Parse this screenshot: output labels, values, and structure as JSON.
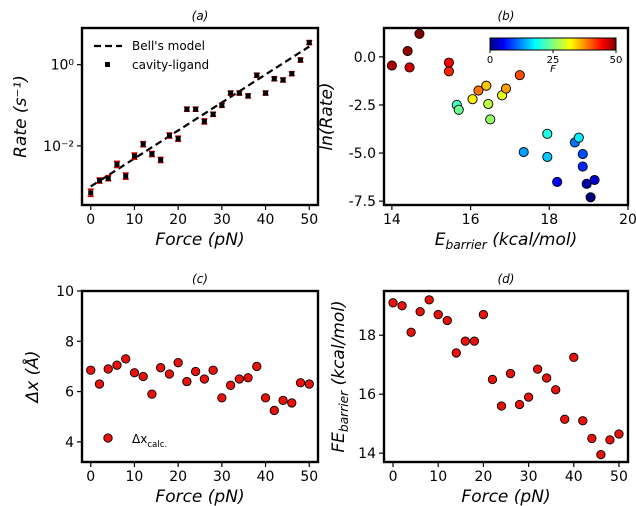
{
  "chart_data": [
    {
      "id": "a",
      "type": "scatter",
      "title": "(a)",
      "xlabel": "Force (pN)",
      "ylabel": "Rate (s⁻¹)",
      "yscale": "log",
      "xlim": [
        -2,
        52
      ],
      "ylim": [
        0.00035,
        8
      ],
      "xticks": [
        0,
        10,
        20,
        30,
        40,
        50
      ],
      "yticks": [
        {
          "v": 1,
          "label": "10⁰"
        },
        {
          "v": 0.01,
          "label": "10⁻²"
        }
      ],
      "legend": {
        "placement": "top-left",
        "entries": [
          "Bell's model",
          "cavity-ligand"
        ]
      },
      "series": [
        {
          "name": "cavity-ligand",
          "points": [
            {
              "x": 0,
              "y": 0.0007,
              "err": 0.35
            },
            {
              "x": 2,
              "y": 0.0014,
              "err": 0.25
            },
            {
              "x": 4,
              "y": 0.0016,
              "err": 0.25
            },
            {
              "x": 6,
              "y": 0.0035,
              "err": 0.3
            },
            {
              "x": 8,
              "y": 0.0018,
              "err": 0.3
            },
            {
              "x": 10,
              "y": 0.0056,
              "err": 0.3
            },
            {
              "x": 12,
              "y": 0.011,
              "err": 0.25
            },
            {
              "x": 14,
              "y": 0.0063,
              "err": 0.25
            },
            {
              "x": 16,
              "y": 0.0045,
              "err": 0.25
            },
            {
              "x": 18,
              "y": 0.018,
              "err": 0.25
            },
            {
              "x": 20,
              "y": 0.015,
              "err": 0.25
            },
            {
              "x": 22,
              "y": 0.08,
              "err": 0.2
            },
            {
              "x": 24,
              "y": 0.08,
              "err": 0.2
            },
            {
              "x": 26,
              "y": 0.04,
              "err": 0.25
            },
            {
              "x": 28,
              "y": 0.06,
              "err": 0.2
            },
            {
              "x": 30,
              "y": 0.1,
              "err": 0.2
            },
            {
              "x": 32,
              "y": 0.2,
              "err": 0.2
            },
            {
              "x": 34,
              "y": 0.2,
              "err": 0.2
            },
            {
              "x": 36,
              "y": 0.17,
              "err": 0.2
            },
            {
              "x": 38,
              "y": 0.55,
              "err": 0.2
            },
            {
              "x": 40,
              "y": 0.2,
              "err": 0.2
            },
            {
              "x": 42,
              "y": 0.45,
              "err": 0.2
            },
            {
              "x": 44,
              "y": 0.42,
              "err": 0.2
            },
            {
              "x": 46,
              "y": 0.6,
              "err": 0.2
            },
            {
              "x": 48,
              "y": 1.3,
              "err": 0.2
            },
            {
              "x": 50,
              "y": 3.5,
              "err": 0.2
            }
          ]
        },
        {
          "name": "Bell's model",
          "line": [
            {
              "x": 0,
              "y": 0.001
            },
            {
              "x": 50,
              "y": 2.8
            }
          ]
        }
      ]
    },
    {
      "id": "b",
      "type": "scatter",
      "title": "(b)",
      "xlabel": "E_barrier (kcal/mol)",
      "ylabel": "ln(Rate)",
      "xlim": [
        13.8,
        20
      ],
      "ylim": [
        -7.7,
        1.5
      ],
      "xticks": [
        14,
        16,
        18,
        20
      ],
      "yticks": [
        0.0,
        -2.5,
        -5.0,
        -7.5
      ],
      "colorbar": {
        "label": "F",
        "min": 0,
        "max": 50,
        "ticks": [
          0,
          25,
          50
        ],
        "colormap": "jet",
        "placement": "top-right"
      },
      "points": [
        {
          "x": 19.05,
          "y": -7.3,
          "f": 0
        },
        {
          "x": 18.95,
          "y": -6.6,
          "f": 2
        },
        {
          "x": 19.15,
          "y": -6.4,
          "f": 4
        },
        {
          "x": 18.2,
          "y": -6.5,
          "f": 6
        },
        {
          "x": 18.85,
          "y": -5.7,
          "f": 8
        },
        {
          "x": 18.85,
          "y": -5.05,
          "f": 10
        },
        {
          "x": 18.65,
          "y": -4.45,
          "f": 12
        },
        {
          "x": 17.35,
          "y": -4.95,
          "f": 14
        },
        {
          "x": 17.95,
          "y": -5.2,
          "f": 16
        },
        {
          "x": 18.75,
          "y": -4.2,
          "f": 18
        },
        {
          "x": 17.95,
          "y": -4.0,
          "f": 20
        },
        {
          "x": 15.65,
          "y": -2.5,
          "f": 22
        },
        {
          "x": 15.7,
          "y": -2.75,
          "f": 24
        },
        {
          "x": 16.5,
          "y": -3.25,
          "f": 26
        },
        {
          "x": 16.45,
          "y": -2.45,
          "f": 28
        },
        {
          "x": 16.8,
          "y": -2.0,
          "f": 30
        },
        {
          "x": 16.05,
          "y": -2.2,
          "f": 32
        },
        {
          "x": 16.4,
          "y": -1.5,
          "f": 34
        },
        {
          "x": 16.9,
          "y": -1.65,
          "f": 36
        },
        {
          "x": 16.2,
          "y": -1.75,
          "f": 38
        },
        {
          "x": 17.25,
          "y": -0.95,
          "f": 40
        },
        {
          "x": 15.45,
          "y": -0.75,
          "f": 42
        },
        {
          "x": 15.45,
          "y": -0.3,
          "f": 44
        },
        {
          "x": 14.45,
          "y": -0.55,
          "f": 46
        },
        {
          "x": 14.0,
          "y": -0.45,
          "f": 48
        },
        {
          "x": 14.4,
          "y": 0.3,
          "f": 49
        },
        {
          "x": 14.7,
          "y": 1.2,
          "f": 50
        }
      ]
    },
    {
      "id": "c",
      "type": "scatter",
      "title": "(c)",
      "xlabel": "Force (pN)",
      "ylabel": "Δx (Å)",
      "xlim": [
        -2,
        52
      ],
      "ylim": [
        3.2,
        10
      ],
      "xticks": [
        0,
        10,
        20,
        30,
        40,
        50
      ],
      "yticks": [
        4,
        6,
        8,
        10
      ],
      "legend": {
        "placement": "bottom-left",
        "entries": [
          "Δx_calc."
        ]
      },
      "x": [
        0,
        2,
        4,
        6,
        8,
        10,
        12,
        14,
        16,
        18,
        20,
        22,
        24,
        26,
        28,
        30,
        32,
        34,
        36,
        38,
        40,
        42,
        44,
        46,
        48,
        50
      ],
      "y": [
        6.85,
        6.3,
        6.9,
        7.05,
        7.3,
        6.75,
        6.6,
        5.9,
        6.95,
        6.7,
        7.15,
        6.4,
        6.8,
        6.5,
        6.85,
        5.75,
        6.25,
        6.5,
        6.55,
        7.0,
        5.75,
        5.25,
        5.65,
        5.55,
        6.35,
        6.3
      ]
    },
    {
      "id": "d",
      "type": "scatter",
      "title": "(d)",
      "xlabel": "Force (pN)",
      "ylabel": "FE_barrier (kcal/mol)",
      "xlim": [
        -2,
        52
      ],
      "ylim": [
        13.7,
        19.5
      ],
      "xticks": [
        0,
        10,
        20,
        30,
        40,
        50
      ],
      "yticks": [
        14,
        16,
        18
      ],
      "x": [
        0,
        2,
        4,
        6,
        8,
        10,
        12,
        14,
        16,
        18,
        20,
        22,
        24,
        26,
        28,
        30,
        32,
        34,
        36,
        38,
        40,
        42,
        44,
        46,
        48,
        50
      ],
      "y": [
        19.1,
        19.0,
        18.1,
        18.8,
        19.2,
        18.7,
        18.5,
        17.4,
        17.8,
        17.8,
        18.7,
        16.5,
        15.6,
        16.7,
        15.65,
        15.9,
        16.85,
        16.55,
        16.15,
        15.15,
        17.25,
        15.1,
        14.5,
        13.95,
        14.45,
        14.65
      ]
    }
  ]
}
